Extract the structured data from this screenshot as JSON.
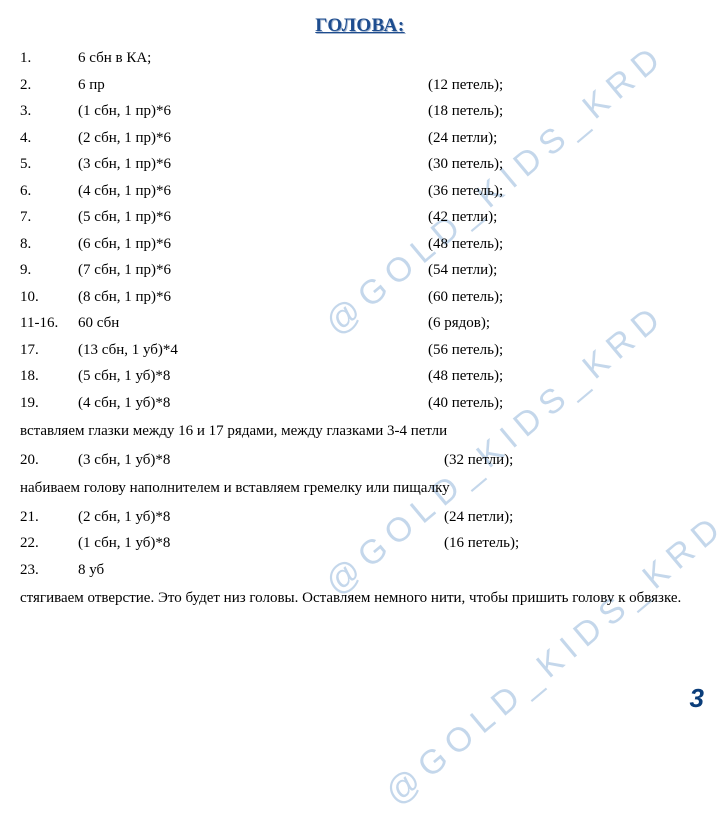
{
  "title": "ГОЛОВА:",
  "watermark": "@GOLD_KIDS_KRD",
  "pageNumber": "3",
  "rows": [
    {
      "num": "1.",
      "instr": "6 сбн в КА;",
      "result": ""
    },
    {
      "num": "2.",
      "instr": "6 пр",
      "result": "(12 петель);"
    },
    {
      "num": "3.",
      "instr": "(1 сбн, 1 пр)*6",
      "result": "(18 петель);"
    },
    {
      "num": "4.",
      "instr": "(2 сбн, 1 пр)*6",
      "result": "(24 петли);"
    },
    {
      "num": "5.",
      "instr": "(3 сбн, 1 пр)*6",
      "result": "(30 петель);"
    },
    {
      "num": "6.",
      "instr": "(4 сбн, 1 пр)*6",
      "result": "(36 петель);"
    },
    {
      "num": "7.",
      "instr": "(5 сбн, 1 пр)*6",
      "result": "(42 петли);"
    },
    {
      "num": "8.",
      "instr": "(6 сбн, 1 пр)*6",
      "result": "(48 петель);"
    },
    {
      "num": "9.",
      "instr": "(7 сбн, 1 пр)*6",
      "result": "(54 петли);"
    },
    {
      "num": "10.",
      "instr": "(8 сбн, 1 пр)*6",
      "result": "(60 петель);"
    },
    {
      "num": "11-16.",
      "instr": "60 сбн",
      "result": "(6 рядов);"
    },
    {
      "num": "17.",
      "instr": "(13 сбн, 1 уб)*4",
      "result": "(56 петель);"
    },
    {
      "num": "18.",
      "instr": "(5 сбн, 1 уб)*8",
      "result": "(48 петель);"
    },
    {
      "num": "19.",
      "instr": "(4 сбн, 1 уб)*8",
      "result": "(40 петель);"
    }
  ],
  "note1": "вставляем глазки между 16 и 17 рядами, между глазками 3-4 петли",
  "rows2": [
    {
      "num": "20.",
      "instr": "(3 сбн, 1 уб)*8",
      "result": "(32 петли);"
    }
  ],
  "note2": "набиваем голову наполнителем и вставляем гремелку или пищалку",
  "rows3": [
    {
      "num": "21.",
      "instr": "(2 сбн, 1 уб)*8",
      "result": "(24 петли);"
    },
    {
      "num": "22.",
      "instr": "(1 сбн, 1 уб)*8",
      "result": "(16 петель);"
    },
    {
      "num": "23.",
      "instr": "8 уб",
      "result": ""
    }
  ],
  "note3": "стягиваем отверстие. Это будет низ головы. Оставляем немного нити, чтобы пришить голову к обвязке."
}
